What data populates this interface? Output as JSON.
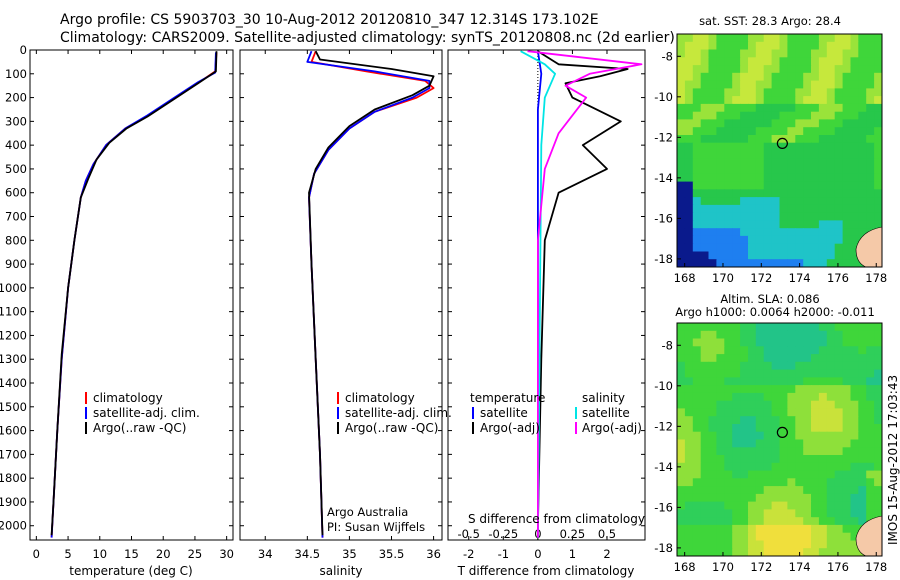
{
  "header": {
    "title_line1": "Argo profile: CS 5903703_30 10-Aug-2012 20120810_347 12.314S 173.102E",
    "title_line2": "Climatology: CARS2009. Satellite-adjusted climatology: synTS_20120808.nc (2d earlier)"
  },
  "stamp": "IMOS 15-Aug-2012 17:03:43",
  "colors": {
    "climatology": "#ff0000",
    "satellite": "#0000ff",
    "argo": "#000000",
    "sat_diff_s": "#00e5e5",
    "argo_diff_s": "#ff00ff"
  },
  "chart_data": [
    {
      "type": "line",
      "xlabel": "temperature (deg C)",
      "xlim": [
        -1,
        31
      ],
      "xticks": [
        "0",
        "5",
        "10",
        "15",
        "20",
        "25",
        "30"
      ],
      "ylim": [
        2060,
        0
      ],
      "yticks": [
        "0",
        "100",
        "200",
        "300",
        "400",
        "500",
        "600",
        "700",
        "800",
        "900",
        "1000",
        "1100",
        "1200",
        "1300",
        "1400",
        "1500",
        "1600",
        "1700",
        "1800",
        "1900",
        "2000"
      ],
      "legend": [
        "climatology",
        "satellite-adj. clim.",
        "Argo(..raw -QC)"
      ],
      "series": [
        {
          "name": "climatology",
          "color": "red",
          "points": [
            [
              28.4,
              10
            ],
            [
              28.2,
              90
            ],
            [
              26,
              130
            ],
            [
              22,
              200
            ],
            [
              18,
              270
            ],
            [
              14,
              330
            ],
            [
              11,
              400
            ],
            [
              9,
              480
            ],
            [
              7.8,
              550
            ],
            [
              7,
              620
            ],
            [
              6,
              800
            ],
            [
              5,
              1000
            ],
            [
              4,
              1300
            ],
            [
              3.3,
              1600
            ],
            [
              2.7,
              1900
            ],
            [
              2.4,
              2050
            ]
          ]
        },
        {
          "name": "satellite-adj. clim.",
          "color": "blue",
          "points": [
            [
              28.3,
              10
            ],
            [
              28.2,
              95
            ],
            [
              25.5,
              135
            ],
            [
              21.5,
              205
            ],
            [
              17.5,
              275
            ],
            [
              14,
              330
            ],
            [
              11,
              400
            ],
            [
              9,
              480
            ],
            [
              7.8,
              550
            ],
            [
              7,
              620
            ],
            [
              6,
              800
            ],
            [
              5,
              1000
            ],
            [
              4,
              1300
            ],
            [
              3.3,
              1600
            ],
            [
              2.7,
              1900
            ],
            [
              2.4,
              2050
            ]
          ]
        },
        {
          "name": "Argo(..raw -QC)",
          "color": "black",
          "points": [
            [
              28.4,
              5
            ],
            [
              28.3,
              90
            ],
            [
              25.5,
              140
            ],
            [
              21.5,
              210
            ],
            [
              17.5,
              280
            ],
            [
              14.2,
              330
            ],
            [
              11.5,
              390
            ],
            [
              9.5,
              460
            ],
            [
              8.2,
              540
            ],
            [
              7,
              620
            ],
            [
              6,
              800
            ],
            [
              5,
              1000
            ],
            [
              4,
              1280
            ],
            [
              3.3,
              1600
            ],
            [
              2.7,
              1900
            ],
            [
              2.4,
              2040
            ]
          ]
        }
      ]
    },
    {
      "type": "line",
      "xlabel": "salinity",
      "xlim": [
        33.7,
        36.1
      ],
      "xticks": [
        "34",
        "34.5",
        "35",
        "35.5",
        "36"
      ],
      "ylim": [
        2060,
        0
      ],
      "legend": [
        "climatology",
        "satellite-adj. clim.",
        "Argo(..raw -QC)"
      ],
      "annotation": [
        "Argo Australia",
        "PI: Susan Wijffels"
      ],
      "series": [
        {
          "name": "climatology",
          "color": "red",
          "points": [
            [
              34.6,
              5
            ],
            [
              34.55,
              50
            ],
            [
              35.2,
              90
            ],
            [
              35.9,
              130
            ],
            [
              36.0,
              160
            ],
            [
              35.8,
              200
            ],
            [
              35.3,
              260
            ],
            [
              35.0,
              330
            ],
            [
              34.75,
              420
            ],
            [
              34.58,
              520
            ],
            [
              34.52,
              620
            ],
            [
              34.55,
              900
            ],
            [
              34.6,
              1300
            ],
            [
              34.65,
              1700
            ],
            [
              34.68,
              2050
            ]
          ]
        },
        {
          "name": "satellite-adj. clim.",
          "color": "blue",
          "points": [
            [
              34.55,
              5
            ],
            [
              34.5,
              50
            ],
            [
              35.3,
              90
            ],
            [
              35.95,
              130
            ],
            [
              35.95,
              160
            ],
            [
              35.75,
              200
            ],
            [
              35.3,
              260
            ],
            [
              35.0,
              330
            ],
            [
              34.75,
              420
            ],
            [
              34.58,
              520
            ],
            [
              34.52,
              620
            ],
            [
              34.55,
              900
            ],
            [
              34.6,
              1300
            ],
            [
              34.65,
              1700
            ],
            [
              34.68,
              2050
            ]
          ]
        },
        {
          "name": "Argo(..raw -QC)",
          "color": "black",
          "points": [
            [
              34.6,
              5
            ],
            [
              34.65,
              40
            ],
            [
              35.5,
              80
            ],
            [
              36.0,
              110
            ],
            [
              35.95,
              150
            ],
            [
              35.75,
              190
            ],
            [
              35.3,
              250
            ],
            [
              35.0,
              320
            ],
            [
              34.75,
              410
            ],
            [
              34.6,
              500
            ],
            [
              34.52,
              600
            ],
            [
              34.55,
              900
            ],
            [
              34.6,
              1300
            ],
            [
              34.65,
              1700
            ],
            [
              34.68,
              2040
            ]
          ]
        }
      ]
    },
    {
      "type": "line",
      "xlabel": "T difference from climatology",
      "xlabel_top": "S difference from climatology",
      "xlim": [
        -2.6,
        3.1
      ],
      "xticks_T": [
        "-2",
        "-1",
        "0",
        "1",
        "2"
      ],
      "xticks_S": [
        "-0.5",
        "-0.25",
        "0",
        "0.25",
        "0.5"
      ],
      "ylim": [
        2060,
        0
      ],
      "legend_temperature": {
        "title": "temperature",
        "items": [
          "satellite",
          "Argo(-adj)"
        ]
      },
      "legend_salinity": {
        "title": "salinity",
        "items": [
          "satellite",
          "Argo(-adj)"
        ]
      },
      "series": [
        {
          "name": "satellite",
          "color": "blue",
          "points": [
            [
              0,
              5
            ],
            [
              0.1,
              100
            ],
            [
              0,
              250
            ],
            [
              0,
              2050
            ]
          ]
        },
        {
          "name": "Argo(-adj)",
          "color": "black",
          "points": [
            [
              0,
              5
            ],
            [
              0.6,
              60
            ],
            [
              2.6,
              80
            ],
            [
              1.8,
              110
            ],
            [
              0.8,
              140
            ],
            [
              1.0,
              200
            ],
            [
              2.4,
              300
            ],
            [
              1.3,
              400
            ],
            [
              2.0,
              500
            ],
            [
              0.6,
              600
            ],
            [
              0.2,
              800
            ],
            [
              0.1,
              1300
            ],
            [
              0,
              2000
            ]
          ]
        },
        {
          "name": "satellite (S)",
          "color": "cyan",
          "points": [
            [
              -0.5,
              5
            ],
            [
              0.2,
              60
            ],
            [
              0.5,
              100
            ],
            [
              0.2,
              200
            ],
            [
              0.1,
              400
            ],
            [
              0,
              2050
            ]
          ]
        },
        {
          "name": "Argo(-adj) (S)",
          "color": "magenta",
          "points": [
            [
              -0.3,
              5
            ],
            [
              3.0,
              60
            ],
            [
              1.5,
              100
            ],
            [
              0.8,
              150
            ],
            [
              1.4,
              200
            ],
            [
              0.6,
              350
            ],
            [
              0.2,
              500
            ],
            [
              0,
              800
            ],
            [
              0,
              2050
            ]
          ]
        }
      ]
    },
    {
      "type": "heatmap",
      "title": "sat. SST: 28.3  Argo: 28.4",
      "xticks": [
        "168",
        "170",
        "172",
        "174",
        "176",
        "178"
      ],
      "yticks": [
        "-8",
        "-10",
        "-12",
        "-14",
        "-16",
        "-18"
      ],
      "marker": {
        "lon": 173.1,
        "lat": -12.3
      }
    },
    {
      "type": "heatmap",
      "title_line1": "Altim. SLA: 0.086",
      "title_line2": "Argo h1000: 0.0064 h2000: -0.011",
      "xticks": [
        "168",
        "170",
        "172",
        "174",
        "176",
        "178"
      ],
      "yticks": [
        "-8",
        "-10",
        "-12",
        "-14",
        "-16",
        "-18"
      ],
      "marker": {
        "lon": 173.1,
        "lat": -12.3
      }
    }
  ]
}
